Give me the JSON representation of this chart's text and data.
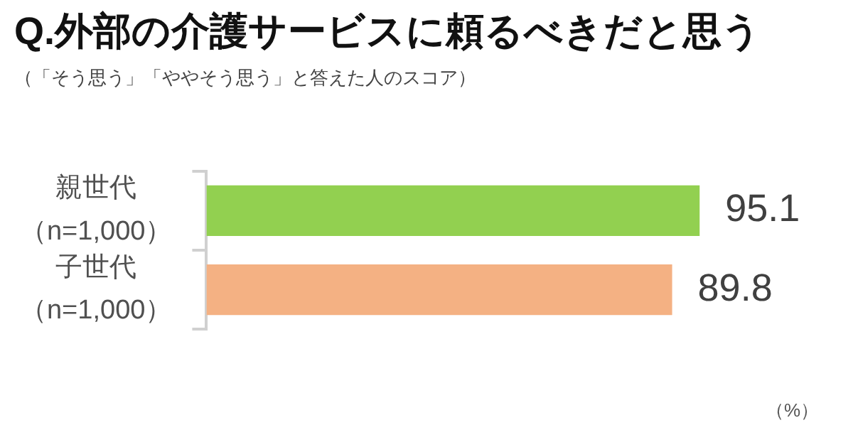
{
  "chart_data": {
    "type": "bar",
    "orientation": "horizontal",
    "title": "Q.外部の介護サービスに頼るべきだと思う",
    "subtitle": "（「そう思う」「ややそう思う」と答えた人のスコア）",
    "categories": [
      "親世代（n=1,000）",
      "子世代（n=1,000）"
    ],
    "values": [
      95.1,
      89.8
    ],
    "colors": [
      "#92d050",
      "#f4b183"
    ],
    "data_labels": true,
    "annotations": [
      "（%）"
    ]
  }
}
